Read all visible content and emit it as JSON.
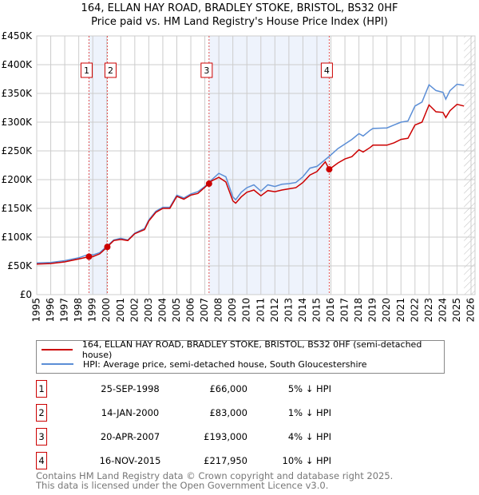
{
  "title": "164, ELLAN HAY ROAD, BRADLEY STOKE, BRISTOL, BS32 0HF",
  "subtitle": "Price paid vs. HM Land Registry's House Price Index (HPI)",
  "chart_data": {
    "type": "line",
    "title": "164, ELLAN HAY ROAD, BRADLEY STOKE, BRISTOL, BS32 0HF",
    "xlim": [
      1995,
      2026
    ],
    "ylim": [
      0,
      450000
    ],
    "yticks": [
      {
        "v": 0,
        "label": "£0"
      },
      {
        "v": 50000,
        "label": "£50K"
      },
      {
        "v": 100000,
        "label": "£100K"
      },
      {
        "v": 150000,
        "label": "£150K"
      },
      {
        "v": 200000,
        "label": "£200K"
      },
      {
        "v": 250000,
        "label": "£250K"
      },
      {
        "v": 300000,
        "label": "£300K"
      },
      {
        "v": 350000,
        "label": "£350K"
      },
      {
        "v": 400000,
        "label": "£400K"
      },
      {
        "v": 450000,
        "label": "£450K"
      }
    ],
    "xticks": [
      "1995",
      "1996",
      "1997",
      "1998",
      "1999",
      "2000",
      "2001",
      "2002",
      "2003",
      "2004",
      "2005",
      "2006",
      "2007",
      "2008",
      "2009",
      "2010",
      "2011",
      "2012",
      "2013",
      "2014",
      "2015",
      "2016",
      "2017",
      "2018",
      "2019",
      "2020",
      "2021",
      "2022",
      "2023",
      "2024",
      "2025",
      "2026"
    ],
    "grid": true,
    "colors": {
      "property": "#cc0000",
      "hpi": "#5b8ed6",
      "shade": "#eef3fc",
      "marker_line": "#e05050"
    },
    "shaded_ranges": [
      [
        1998.73,
        2000.04
      ],
      [
        2007.3,
        2015.88
      ]
    ],
    "forecast_start": 2025.5,
    "series": [
      {
        "name": "HPI",
        "x": [
          1995,
          1996,
          1997,
          1998,
          1998.7,
          1999,
          1999.5,
          2000,
          2000.5,
          2001,
          2001.5,
          2002,
          2002.7,
          2003,
          2003.5,
          2004,
          2004.5,
          2005,
          2005.5,
          2006,
          2006.5,
          2007,
          2007.5,
          2008,
          2008.5,
          2009,
          2009.2,
          2009.6,
          2010,
          2010.5,
          2011,
          2011.5,
          2012,
          2012.5,
          2013,
          2013.5,
          2014,
          2014.5,
          2015,
          2015.9,
          2016.5,
          2017,
          2017.5,
          2018,
          2018.3,
          2018.8,
          2019,
          2020,
          2020.5,
          2021,
          2021.5,
          2022,
          2022.5,
          2023,
          2023.5,
          2024,
          2024.2,
          2024.5,
          2025,
          2025.5
        ],
        "values": [
          55000,
          56000,
          59000,
          64000,
          70000,
          69000,
          73000,
          84000,
          95000,
          98000,
          95000,
          107000,
          115000,
          130000,
          145000,
          152000,
          152000,
          173000,
          168000,
          175000,
          179000,
          188000,
          200000,
          211000,
          205000,
          170000,
          165000,
          178000,
          186000,
          191000,
          180000,
          191000,
          188000,
          192000,
          193000,
          195000,
          205000,
          220000,
          223000,
          241000,
          254000,
          262000,
          270000,
          280000,
          276000,
          286000,
          289000,
          290000,
          295000,
          300000,
          302000,
          328000,
          335000,
          365000,
          355000,
          352000,
          340000,
          355000,
          366000,
          364000
        ]
      },
      {
        "name": "164, ELLAN HAY ROAD, BRADLEY STOKE, BRISTOL, BS32 0HF (semi-detached house)",
        "x": [
          1995,
          1996,
          1997,
          1998,
          1998.73,
          1999,
          1999.5,
          2000.04,
          2000.5,
          2001,
          2001.5,
          2002,
          2002.7,
          2003,
          2003.5,
          2004,
          2004.5,
          2005,
          2005.5,
          2006,
          2006.5,
          2007.3,
          2007.5,
          2008,
          2008.5,
          2009,
          2009.2,
          2009.6,
          2010,
          2010.5,
          2011,
          2011.5,
          2012,
          2012.5,
          2013,
          2013.5,
          2014,
          2014.5,
          2015,
          2015.6,
          2015.88,
          2016.5,
          2017,
          2017.5,
          2018,
          2018.3,
          2018.8,
          2019,
          2020,
          2020.5,
          2021,
          2021.5,
          2022,
          2022.5,
          2023,
          2023.5,
          2024,
          2024.2,
          2024.5,
          2025,
          2025.5
        ],
        "values": [
          53000,
          54000,
          57000,
          62000,
          66000,
          66000,
          71000,
          83000,
          94000,
          96000,
          94000,
          106000,
          113000,
          128000,
          143000,
          150000,
          150000,
          171000,
          166000,
          173000,
          176000,
          193000,
          198000,
          204000,
          196000,
          163000,
          159000,
          170000,
          178000,
          182000,
          172000,
          181000,
          179000,
          182000,
          184000,
          186000,
          195000,
          208000,
          214000,
          231000,
          217950,
          229000,
          236000,
          240000,
          252000,
          248000,
          256000,
          260000,
          260000,
          264000,
          270000,
          272000,
          295000,
          300000,
          330000,
          318000,
          317000,
          308000,
          320000,
          331000,
          328000
        ]
      }
    ],
    "sales": [
      {
        "id": "1",
        "x": 1998.73,
        "value": 66000
      },
      {
        "id": "2",
        "x": 2000.04,
        "value": 83000
      },
      {
        "id": "3",
        "x": 2007.3,
        "value": 193000
      },
      {
        "id": "4",
        "x": 2015.88,
        "value": 217950
      }
    ]
  },
  "legend": [
    {
      "label": "164, ELLAN HAY ROAD, BRADLEY STOKE, BRISTOL, BS32 0HF (semi-detached house)",
      "color": "#cc0000"
    },
    {
      "label": "HPI: Average price, semi-detached house, South Gloucestershire",
      "color": "#5b8ed6"
    }
  ],
  "transactions": [
    {
      "num": "1",
      "date": "25-SEP-1998",
      "price": "£66,000",
      "diff": "5% ↓ HPI"
    },
    {
      "num": "2",
      "date": "14-JAN-2000",
      "price": "£83,000",
      "diff": "1% ↓ HPI"
    },
    {
      "num": "3",
      "date": "20-APR-2007",
      "price": "£193,000",
      "diff": "4% ↓ HPI"
    },
    {
      "num": "4",
      "date": "16-NOV-2015",
      "price": "£217,950",
      "diff": "10% ↓ HPI"
    }
  ],
  "footer": [
    "Contains HM Land Registry data © Crown copyright and database right 2025.",
    "This data is licensed under the Open Government Licence v3.0."
  ]
}
